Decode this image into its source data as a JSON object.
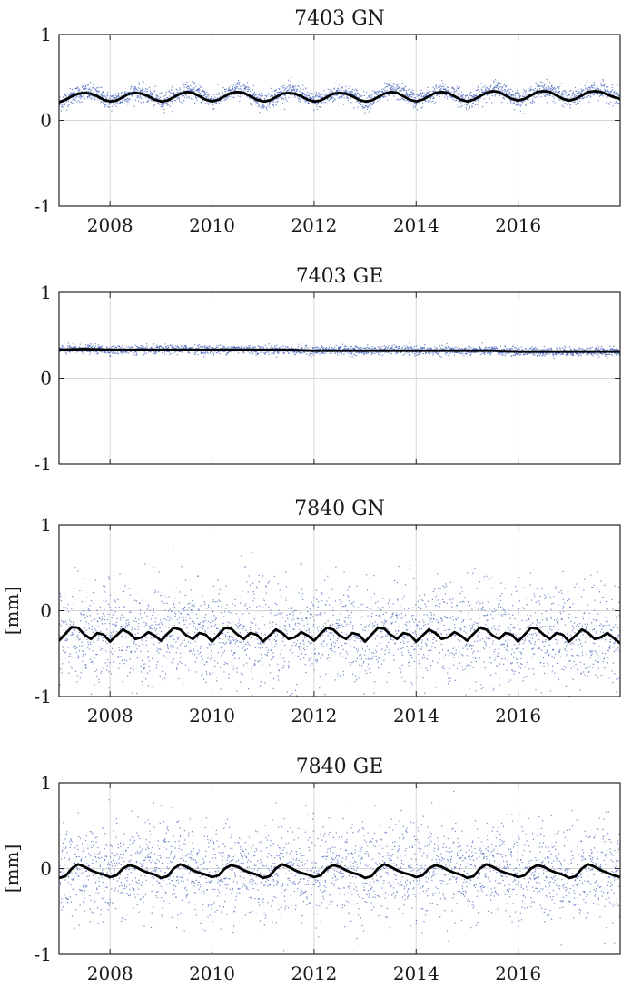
{
  "figure": {
    "panels": [
      {
        "title": "7403 GN",
        "ylabel": "",
        "show_xticks": true
      },
      {
        "title": "7403 GE",
        "ylabel": "",
        "show_xticks": false
      },
      {
        "title": "7840 GN",
        "ylabel": "[mm]",
        "show_xticks": true
      },
      {
        "title": "7840 GE",
        "ylabel": "[mm]",
        "show_xticks": true
      }
    ]
  },
  "colors": {
    "observations": "#3f5fb8",
    "model": "#000000",
    "grid": "#d6d6d6",
    "axes": "#262626"
  },
  "chart_data": [
    {
      "type": "scatter",
      "title": "7403 GN",
      "xlim": [
        2007.0,
        2018.0
      ],
      "ylim": [
        -1,
        1
      ],
      "yticks": [
        -1,
        0,
        1
      ],
      "xticks": [
        2008,
        2010,
        2012,
        2014,
        2016
      ],
      "grid": true,
      "series": [
        {
          "kind": "scatter",
          "style": "dots",
          "x": [
            2007.0,
            2007.25,
            2007.5,
            2007.75,
            2008.0,
            2008.25,
            2008.5,
            2008.75,
            2009.0,
            2009.25,
            2009.5,
            2009.75,
            2010.0,
            2010.25,
            2010.5,
            2010.75,
            2011.0,
            2011.25,
            2011.5,
            2011.75,
            2012.0,
            2012.25,
            2012.5,
            2012.75,
            2013.0,
            2013.25,
            2013.5,
            2013.75,
            2014.0,
            2014.25,
            2014.5,
            2014.75,
            2015.0,
            2015.25,
            2015.5,
            2015.75,
            2016.0,
            2016.25,
            2016.5,
            2016.75,
            2017.0,
            2017.25,
            2017.5,
            2017.75,
            2018.0
          ],
          "y": [
            0.2,
            0.28,
            0.33,
            0.3,
            0.22,
            0.27,
            0.34,
            0.3,
            0.22,
            0.28,
            0.35,
            0.32,
            0.23,
            0.28,
            0.36,
            0.31,
            0.21,
            0.28,
            0.35,
            0.3,
            0.22,
            0.27,
            0.34,
            0.3,
            0.21,
            0.28,
            0.35,
            0.32,
            0.23,
            0.28,
            0.35,
            0.31,
            0.22,
            0.29,
            0.37,
            0.33,
            0.24,
            0.3,
            0.37,
            0.32,
            0.24,
            0.3,
            0.36,
            0.33,
            0.25
          ],
          "scatter_sd": 0.05
        },
        {
          "kind": "line",
          "x": [
            2007.0,
            2007.125,
            2007.25,
            2007.375,
            2007.5,
            2007.625,
            2007.75,
            2007.875,
            2008.0,
            2008.125,
            2008.25,
            2008.375,
            2008.5,
            2008.625,
            2008.75,
            2008.875,
            2009.0,
            2009.125,
            2009.25,
            2009.375,
            2009.5,
            2009.625,
            2009.75,
            2009.875,
            2010.0,
            2010.125,
            2010.25,
            2010.375,
            2010.5,
            2010.625,
            2010.75,
            2010.875,
            2011.0,
            2011.125,
            2011.25,
            2011.375,
            2011.5,
            2011.625,
            2011.75,
            2011.875,
            2012.0,
            2012.125,
            2012.25,
            2012.375,
            2012.5,
            2012.625,
            2012.75,
            2012.875,
            2013.0,
            2013.125,
            2013.25,
            2013.375,
            2013.5,
            2013.625,
            2013.75,
            2013.875,
            2014.0,
            2014.125,
            2014.25,
            2014.375,
            2014.5,
            2014.625,
            2014.75,
            2014.875,
            2015.0,
            2015.125,
            2015.25,
            2015.375,
            2015.5,
            2015.625,
            2015.75,
            2015.875,
            2016.0,
            2016.125,
            2016.25,
            2016.375,
            2016.5,
            2016.625,
            2016.75,
            2016.875,
            2017.0,
            2017.125,
            2017.25,
            2017.375,
            2017.5,
            2017.625,
            2017.75,
            2017.875,
            2018.0
          ],
          "y": [
            0.21,
            0.24,
            0.28,
            0.31,
            0.32,
            0.31,
            0.28,
            0.24,
            0.22,
            0.23,
            0.27,
            0.31,
            0.32,
            0.31,
            0.28,
            0.24,
            0.22,
            0.23,
            0.27,
            0.31,
            0.33,
            0.32,
            0.28,
            0.24,
            0.22,
            0.24,
            0.28,
            0.32,
            0.33,
            0.32,
            0.28,
            0.24,
            0.22,
            0.23,
            0.27,
            0.31,
            0.32,
            0.31,
            0.28,
            0.24,
            0.22,
            0.23,
            0.27,
            0.31,
            0.32,
            0.31,
            0.28,
            0.24,
            0.22,
            0.23,
            0.27,
            0.31,
            0.33,
            0.32,
            0.28,
            0.24,
            0.22,
            0.24,
            0.28,
            0.32,
            0.33,
            0.32,
            0.28,
            0.24,
            0.22,
            0.24,
            0.28,
            0.32,
            0.34,
            0.33,
            0.29,
            0.25,
            0.23,
            0.25,
            0.29,
            0.33,
            0.34,
            0.33,
            0.29,
            0.25,
            0.23,
            0.25,
            0.29,
            0.33,
            0.34,
            0.33,
            0.3,
            0.27,
            0.25
          ]
        }
      ]
    },
    {
      "type": "scatter",
      "title": "7403 GE",
      "xlim": [
        2007.0,
        2018.0
      ],
      "ylim": [
        -1,
        1
      ],
      "yticks": [
        -1,
        0,
        1
      ],
      "xticks": [
        2008,
        2010,
        2012,
        2014,
        2016
      ],
      "grid": true,
      "series": [
        {
          "kind": "scatter",
          "style": "dots",
          "x": [
            2007.0,
            2007.5,
            2008.0,
            2008.5,
            2009.0,
            2009.5,
            2010.0,
            2010.5,
            2011.0,
            2011.5,
            2012.0,
            2012.5,
            2013.0,
            2013.5,
            2014.0,
            2014.5,
            2015.0,
            2015.5,
            2016.0,
            2016.5,
            2017.0,
            2017.5,
            2018.0
          ],
          "y": [
            0.33,
            0.34,
            0.33,
            0.33,
            0.33,
            0.34,
            0.33,
            0.34,
            0.33,
            0.33,
            0.32,
            0.33,
            0.32,
            0.33,
            0.32,
            0.32,
            0.32,
            0.32,
            0.31,
            0.31,
            0.31,
            0.31,
            0.31
          ],
          "scatter_sd": 0.025
        },
        {
          "kind": "line",
          "x": [
            2007.0,
            2007.5,
            2008.0,
            2008.5,
            2009.0,
            2009.5,
            2010.0,
            2010.5,
            2011.0,
            2011.5,
            2012.0,
            2012.5,
            2013.0,
            2013.5,
            2014.0,
            2014.5,
            2015.0,
            2015.5,
            2016.0,
            2016.5,
            2017.0,
            2017.5,
            2018.0
          ],
          "y": [
            0.33,
            0.34,
            0.33,
            0.33,
            0.33,
            0.33,
            0.33,
            0.33,
            0.33,
            0.33,
            0.32,
            0.32,
            0.32,
            0.32,
            0.32,
            0.32,
            0.32,
            0.32,
            0.31,
            0.31,
            0.31,
            0.31,
            0.31
          ]
        }
      ]
    },
    {
      "type": "scatter",
      "title": "7840 GN",
      "ylabel": "[mm]",
      "xlim": [
        2007.0,
        2018.0
      ],
      "ylim": [
        -1,
        1
      ],
      "yticks": [
        -1,
        0,
        1
      ],
      "xticks": [
        2008,
        2010,
        2012,
        2014,
        2016
      ],
      "grid": true,
      "series": [
        {
          "kind": "scatter",
          "style": "dots",
          "x": [
            2007.0,
            2007.5,
            2008.0,
            2008.5,
            2009.0,
            2009.5,
            2010.0,
            2010.5,
            2011.0,
            2011.5,
            2012.0,
            2012.5,
            2013.0,
            2013.5,
            2014.0,
            2014.5,
            2015.0,
            2015.5,
            2016.0,
            2016.5,
            2017.0,
            2017.5,
            2018.0
          ],
          "y": [
            -0.3,
            -0.25,
            -0.3,
            -0.25,
            -0.3,
            -0.25,
            -0.3,
            -0.25,
            -0.3,
            -0.25,
            -0.3,
            -0.25,
            -0.3,
            -0.25,
            -0.3,
            -0.25,
            -0.3,
            -0.25,
            -0.3,
            -0.25,
            -0.3,
            -0.25,
            -0.3
          ],
          "scatter_sd": 0.3
        },
        {
          "kind": "line",
          "x": [
            2007.0,
            2007.125,
            2007.25,
            2007.375,
            2007.5,
            2007.625,
            2007.75,
            2007.875,
            2008.0,
            2008.125,
            2008.25,
            2008.375,
            2008.5,
            2008.625,
            2008.75,
            2008.875,
            2009.0,
            2009.125,
            2009.25,
            2009.375,
            2009.5,
            2009.625,
            2009.75,
            2009.875,
            2010.0,
            2010.125,
            2010.25,
            2010.375,
            2010.5,
            2010.625,
            2010.75,
            2010.875,
            2011.0,
            2011.125,
            2011.25,
            2011.375,
            2011.5,
            2011.625,
            2011.75,
            2011.875,
            2012.0,
            2012.125,
            2012.25,
            2012.375,
            2012.5,
            2012.625,
            2012.75,
            2012.875,
            2013.0,
            2013.125,
            2013.25,
            2013.375,
            2013.5,
            2013.625,
            2013.75,
            2013.875,
            2014.0,
            2014.125,
            2014.25,
            2014.375,
            2014.5,
            2014.625,
            2014.75,
            2014.875,
            2015.0,
            2015.125,
            2015.25,
            2015.375,
            2015.5,
            2015.625,
            2015.75,
            2015.875,
            2016.0,
            2016.125,
            2016.25,
            2016.375,
            2016.5,
            2016.625,
            2016.75,
            2016.875,
            2017.0,
            2017.125,
            2017.25,
            2017.375,
            2017.5,
            2017.625,
            2017.75,
            2017.875,
            2018.0
          ],
          "y": [
            -0.35,
            -0.27,
            -0.19,
            -0.2,
            -0.28,
            -0.33,
            -0.26,
            -0.28,
            -0.36,
            -0.29,
            -0.22,
            -0.26,
            -0.33,
            -0.31,
            -0.25,
            -0.29,
            -0.35,
            -0.27,
            -0.2,
            -0.22,
            -0.29,
            -0.33,
            -0.26,
            -0.28,
            -0.36,
            -0.28,
            -0.2,
            -0.21,
            -0.28,
            -0.33,
            -0.26,
            -0.28,
            -0.36,
            -0.29,
            -0.22,
            -0.26,
            -0.33,
            -0.31,
            -0.25,
            -0.29,
            -0.35,
            -0.27,
            -0.2,
            -0.22,
            -0.29,
            -0.33,
            -0.26,
            -0.28,
            -0.36,
            -0.28,
            -0.2,
            -0.21,
            -0.28,
            -0.33,
            -0.26,
            -0.28,
            -0.36,
            -0.29,
            -0.22,
            -0.26,
            -0.33,
            -0.31,
            -0.25,
            -0.29,
            -0.35,
            -0.27,
            -0.2,
            -0.22,
            -0.29,
            -0.33,
            -0.26,
            -0.28,
            -0.36,
            -0.28,
            -0.2,
            -0.21,
            -0.28,
            -0.33,
            -0.26,
            -0.28,
            -0.36,
            -0.29,
            -0.22,
            -0.26,
            -0.33,
            -0.31,
            -0.26,
            -0.32,
            -0.38
          ]
        }
      ]
    },
    {
      "type": "scatter",
      "title": "7840 GE",
      "ylabel": "[mm]",
      "xlim": [
        2007.0,
        2018.0
      ],
      "ylim": [
        -1,
        1
      ],
      "yticks": [
        -1,
        0,
        1
      ],
      "xticks": [
        2008,
        2010,
        2012,
        2014,
        2016
      ],
      "grid": true,
      "series": [
        {
          "kind": "scatter",
          "style": "dots",
          "x": [
            2007.0,
            2007.5,
            2008.0,
            2008.5,
            2009.0,
            2009.5,
            2010.0,
            2010.5,
            2011.0,
            2011.5,
            2012.0,
            2012.5,
            2013.0,
            2013.5,
            2014.0,
            2014.5,
            2015.0,
            2015.5,
            2016.0,
            2016.5,
            2017.0,
            2017.5,
            2018.0
          ],
          "y": [
            -0.05,
            0.0,
            -0.05,
            0.0,
            -0.05,
            0.0,
            -0.05,
            0.0,
            -0.05,
            0.0,
            -0.05,
            0.0,
            -0.05,
            0.0,
            -0.05,
            0.0,
            -0.05,
            0.0,
            -0.05,
            0.0,
            -0.05,
            0.0,
            -0.05
          ],
          "scatter_sd": 0.28
        },
        {
          "kind": "line",
          "x": [
            2007.0,
            2007.125,
            2007.25,
            2007.375,
            2007.5,
            2007.625,
            2007.75,
            2007.875,
            2008.0,
            2008.125,
            2008.25,
            2008.375,
            2008.5,
            2008.625,
            2008.75,
            2008.875,
            2009.0,
            2009.125,
            2009.25,
            2009.375,
            2009.5,
            2009.625,
            2009.75,
            2009.875,
            2010.0,
            2010.125,
            2010.25,
            2010.375,
            2010.5,
            2010.625,
            2010.75,
            2010.875,
            2011.0,
            2011.125,
            2011.25,
            2011.375,
            2011.5,
            2011.625,
            2011.75,
            2011.875,
            2012.0,
            2012.125,
            2012.25,
            2012.375,
            2012.5,
            2012.625,
            2012.75,
            2012.875,
            2013.0,
            2013.125,
            2013.25,
            2013.375,
            2013.5,
            2013.625,
            2013.75,
            2013.875,
            2014.0,
            2014.125,
            2014.25,
            2014.375,
            2014.5,
            2014.625,
            2014.75,
            2014.875,
            2015.0,
            2015.125,
            2015.25,
            2015.375,
            2015.5,
            2015.625,
            2015.75,
            2015.875,
            2016.0,
            2016.125,
            2016.25,
            2016.375,
            2016.5,
            2016.625,
            2016.75,
            2016.875,
            2017.0,
            2017.125,
            2017.25,
            2017.375,
            2017.5,
            2017.625,
            2017.75,
            2017.875,
            2018.0
          ],
          "y": [
            -0.11,
            -0.09,
            0.0,
            0.05,
            0.02,
            -0.02,
            -0.05,
            -0.07,
            -0.1,
            -0.08,
            0.0,
            0.04,
            0.02,
            -0.02,
            -0.05,
            -0.07,
            -0.11,
            -0.09,
            0.0,
            0.05,
            0.02,
            -0.02,
            -0.05,
            -0.07,
            -0.1,
            -0.08,
            0.0,
            0.04,
            0.02,
            -0.02,
            -0.05,
            -0.07,
            -0.11,
            -0.09,
            0.0,
            0.05,
            0.02,
            -0.02,
            -0.05,
            -0.07,
            -0.1,
            -0.08,
            0.0,
            0.04,
            0.02,
            -0.02,
            -0.05,
            -0.07,
            -0.11,
            -0.09,
            0.0,
            0.05,
            0.02,
            -0.02,
            -0.05,
            -0.07,
            -0.1,
            -0.08,
            0.0,
            0.04,
            0.02,
            -0.02,
            -0.05,
            -0.07,
            -0.11,
            -0.09,
            0.0,
            0.05,
            0.02,
            -0.02,
            -0.05,
            -0.07,
            -0.1,
            -0.08,
            0.0,
            0.04,
            0.02,
            -0.02,
            -0.05,
            -0.07,
            -0.11,
            -0.09,
            0.0,
            0.05,
            0.02,
            -0.02,
            -0.05,
            -0.08,
            -0.1
          ]
        }
      ]
    }
  ]
}
